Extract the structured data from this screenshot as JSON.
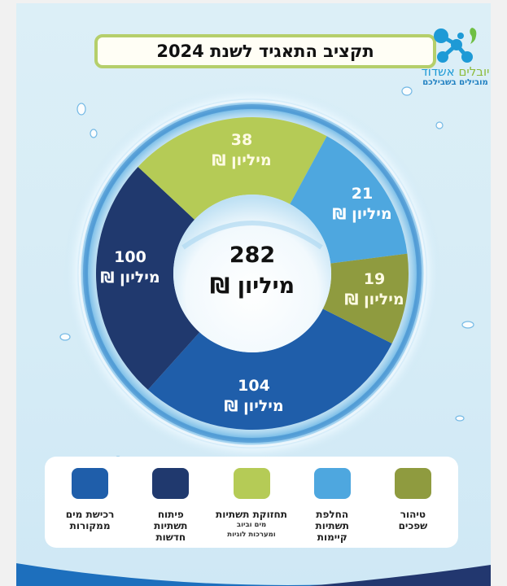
{
  "header": {
    "title": "תקציב התאגיד לשנת 2024"
  },
  "logo": {
    "name_part1": "יובלים",
    "name_part2": "אשדוד",
    "tagline": "מובילים בשבילכם",
    "colors": {
      "blue": "#1e9ad6",
      "green": "#8dbb3b"
    }
  },
  "chart_data": {
    "type": "pie",
    "subtype": "donut",
    "title": "תקציב התאגיד לשנת 2024",
    "unit": "מיליון ₪",
    "total": {
      "value": 282,
      "label": "282",
      "unit": "מיליון ₪"
    },
    "categories": [
      "רכישת מים ממקורות",
      "פיתוח תשתיות חדשות",
      "תחזוקת תשתיות מים וביוב ומערכות לוגיות",
      "החלפת תשתיות קיימות",
      "טיהור שפכים"
    ],
    "values": [
      104,
      100,
      38,
      21,
      19
    ],
    "colors": [
      "#1f5eaa",
      "#20396e",
      "#b5cb56",
      "#4ea7df",
      "#8f9b3f"
    ],
    "legend_position": "bottom"
  },
  "segments": [
    {
      "key": "purchase",
      "value": "104",
      "unit": "מיליון ₪",
      "color": "#1f5eaa"
    },
    {
      "key": "development",
      "value": "100",
      "unit": "מיליון ₪",
      "color": "#20396e"
    },
    {
      "key": "maintenance",
      "value": "38",
      "unit": "מיליון ₪",
      "color": "#b5cb56"
    },
    {
      "key": "replacement",
      "value": "21",
      "unit": "מיליון ₪",
      "color": "#4ea7df"
    },
    {
      "key": "sewage",
      "value": "19",
      "unit": "מיליון ₪",
      "color": "#8f9b3f"
    }
  ],
  "center": {
    "value": "282",
    "unit": "מיליון ₪"
  },
  "legend": {
    "items": [
      {
        "title_line1": "רכישת מים",
        "title_line2": "ממקורות",
        "color": "#1f5eaa"
      },
      {
        "title_line1": "פיתוח",
        "title_line2": "תשתיות",
        "title_line3": "חדשות",
        "color": "#20396e"
      },
      {
        "title_line1": "תחזוקת תשתיות",
        "sub_line1": "מים וביוב",
        "sub_line2": "ומערכות לוגיות",
        "color": "#b5cb56"
      },
      {
        "title_line1": "החלפת",
        "title_line2": "תשתיות",
        "title_line3": "קיימות",
        "color": "#4ea7df"
      },
      {
        "title_line1": "טיהור",
        "title_line2": "שפכים",
        "color": "#8f9b3f"
      }
    ]
  }
}
